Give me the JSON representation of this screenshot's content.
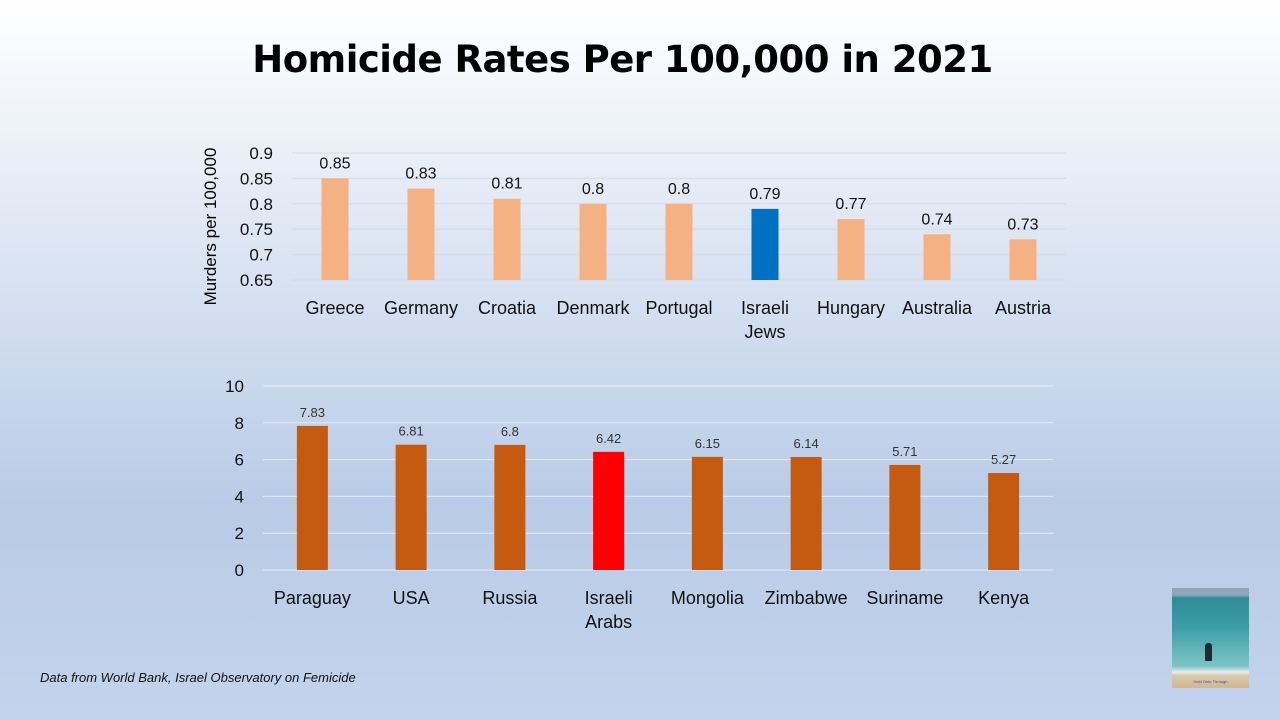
{
  "title": "Homicide Rates Per 100,000 in 2021",
  "source_note": "Data from World Bank, Israel Observatory on Femicide",
  "photo": {
    "caption": "Hold Onto Through",
    "icon": "beach-photo-thumbnail"
  },
  "chart_data": [
    {
      "type": "bar",
      "title": "",
      "xlabel": "",
      "ylabel": "Murders per 100,000",
      "ylim": [
        0.65,
        0.9
      ],
      "yticks": [
        0.65,
        0.7,
        0.75,
        0.8,
        0.85,
        0.9
      ],
      "ytick_labels": [
        "0.65",
        "0.7",
        "0.75",
        "0.8",
        "0.85",
        "0.9"
      ],
      "grid": true,
      "categories": [
        "Greece",
        "Germany",
        "Croatia",
        "Denmark",
        "Portugal",
        "Israeli Jews",
        "Hungary",
        "Australia",
        "Austria"
      ],
      "values": [
        0.85,
        0.83,
        0.81,
        0.8,
        0.8,
        0.79,
        0.77,
        0.74,
        0.73
      ],
      "data_labels": [
        "0.85",
        "0.83",
        "0.81",
        "0.8",
        "0.8",
        "0.79",
        "0.77",
        "0.74",
        "0.73"
      ],
      "colors": [
        "#f4b183",
        "#f4b183",
        "#f4b183",
        "#f4b183",
        "#f4b183",
        "#0070c0",
        "#f4b183",
        "#f4b183",
        "#f4b183"
      ],
      "highlight": "Israeli Jews"
    },
    {
      "type": "bar",
      "title": "",
      "xlabel": "",
      "ylabel": "",
      "ylim": [
        0,
        10
      ],
      "yticks": [
        0,
        2,
        4,
        6,
        8,
        10
      ],
      "ytick_labels": [
        "0",
        "2",
        "4",
        "6",
        "8",
        "10"
      ],
      "grid": true,
      "categories": [
        "Paraguay",
        "USA",
        "Russia",
        "Israeli Arabs",
        "Mongolia",
        "Zimbabwe",
        "Suriname",
        "Kenya"
      ],
      "values": [
        7.83,
        6.81,
        6.8,
        6.42,
        6.15,
        6.14,
        5.71,
        5.27
      ],
      "data_labels": [
        "7.83",
        "6.81",
        "6.8",
        "6.42",
        "6.15",
        "6.14",
        "5.71",
        "5.27"
      ],
      "colors": [
        "#c55a11",
        "#c55a11",
        "#c55a11",
        "#ff0000",
        "#c55a11",
        "#c55a11",
        "#c55a11",
        "#c55a11"
      ],
      "highlight": "Israeli Arabs"
    }
  ]
}
